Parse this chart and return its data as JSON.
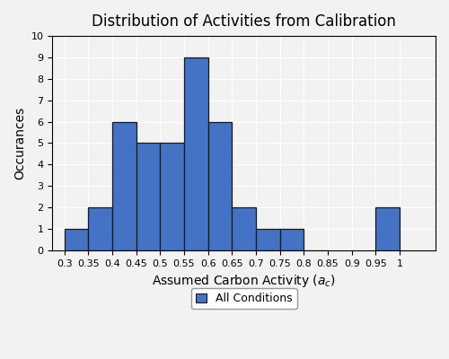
{
  "title": "Distribution of Activities from Calibration",
  "xlabel": "Assumed Carbon Activity ($a_c$)",
  "ylabel": "Occurances",
  "legend_label": "All Conditions",
  "bar_color": "#4472C4",
  "bar_edgecolor": "#1a1a1a",
  "background_color": "#f2f2f2",
  "grid_color": "#ffffff",
  "bin_edges": [
    0.3,
    0.35,
    0.4,
    0.45,
    0.5,
    0.55,
    0.6,
    0.65,
    0.7,
    0.75,
    0.8,
    0.95,
    1.0
  ],
  "counts": [
    1,
    2,
    6,
    5,
    5,
    9,
    6,
    2,
    1,
    1,
    0,
    2
  ],
  "xlim": [
    0.275,
    1.075
  ],
  "ylim": [
    0,
    10
  ],
  "yticks": [
    0,
    1,
    2,
    3,
    4,
    5,
    6,
    7,
    8,
    9,
    10
  ],
  "xticks": [
    0.3,
    0.35,
    0.4,
    0.45,
    0.5,
    0.55,
    0.6,
    0.65,
    0.7,
    0.75,
    0.8,
    0.85,
    0.9,
    0.95,
    1.0
  ],
  "xtick_labels": [
    "0.3",
    "0.35",
    "0.4",
    "0.45",
    "0.5",
    "0.55",
    "0.6",
    "0.65",
    "0.7",
    "0.75",
    "0.8",
    "0.85",
    "0.9",
    "0.95",
    "1"
  ],
  "bar_width": 0.05,
  "title_fontsize": 12,
  "axis_label_fontsize": 10,
  "tick_fontsize": 8,
  "legend_fontsize": 9
}
